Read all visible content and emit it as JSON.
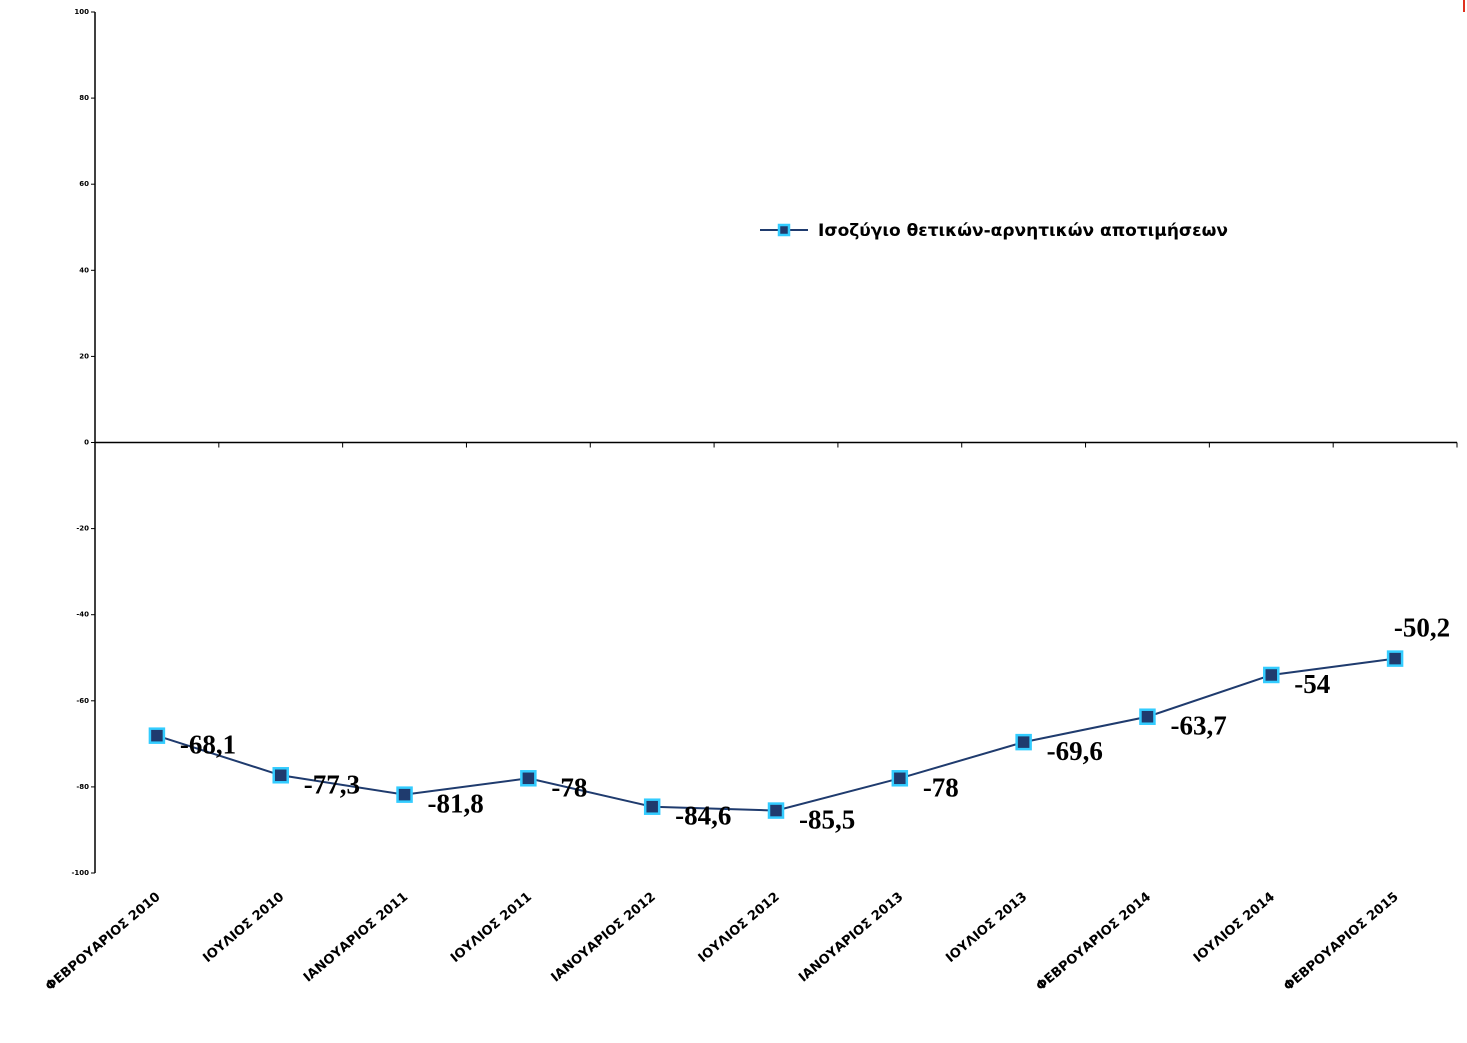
{
  "chart_data": {
    "type": "line",
    "title": "",
    "xlabel": "",
    "ylabel": "",
    "ylim": [
      -100,
      100
    ],
    "yticks": [
      100,
      80,
      60,
      40,
      20,
      0,
      -20,
      -40,
      -60,
      -80,
      -100
    ],
    "categories": [
      "ΦΕΒΡΟΥΑΡΙΟΣ 2010",
      "ΙΟΥΛΙΟΣ 2010",
      "ΙΑΝΟΥΑΡΙΟΣ 2011",
      "ΙΟΥΛΙΟΣ 2011",
      "ΙΑΝΟΥΑΡΙΟΣ 2012",
      "ΙΟΥΛΙΟΣ 2012",
      "ΙΑΝΟΥΑΡΙΟΣ 2013",
      "ΙΟΥΛΙΟΣ 2013",
      "ΦΕΒΡΟΥΑΡΙΟΣ 2014",
      "ΙΟΥΛΙΟΣ 2014",
      "ΦΕΒΡΟΥΑΡΙΟΣ 2015"
    ],
    "series": [
      {
        "name": "Ισοζύγιο θετικών-αρνητικών αποτιμήσεων",
        "values": [
          -68.1,
          -77.3,
          -81.8,
          -78,
          -84.6,
          -85.5,
          -78,
          -69.6,
          -63.7,
          -54,
          -50.2
        ],
        "labels": [
          "-68,1",
          "-77,3",
          "-81,8",
          "-78",
          "-84,6",
          "-85,5",
          "-78",
          "-69,6",
          "-63,7",
          "-54",
          "-50,2"
        ],
        "line_color": "#1f3b6e",
        "marker_fill": "#1f3b6e",
        "marker_edge": "#33ccff"
      }
    ],
    "legend_position": "right",
    "grid": false
  }
}
